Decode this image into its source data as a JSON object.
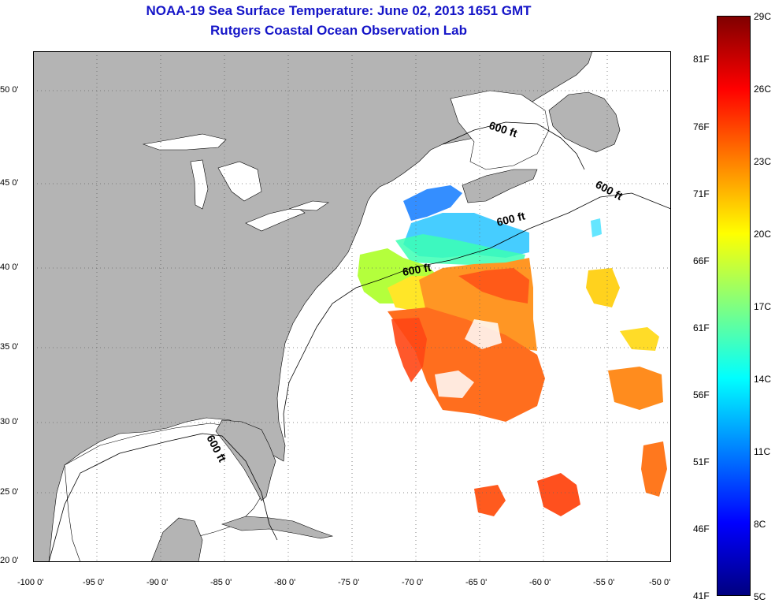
{
  "title_line1": "NOAA-19 Sea Surface Temperature:  June 02, 2013 1651 GMT",
  "title_line2": "Rutgers Coastal Ocean Observation Lab",
  "map": {
    "lon_range": [
      -100,
      -50
    ],
    "lat_range": [
      20,
      52.5
    ],
    "grid": "dotted",
    "land_color": "#b4b4b4",
    "lat_ticks": [
      {
        "value": 50,
        "label": "50 0'"
      },
      {
        "value": 45,
        "label": "45 0'"
      },
      {
        "value": 40,
        "label": "40 0'"
      },
      {
        "value": 35,
        "label": "35 0'"
      },
      {
        "value": 30,
        "label": "30 0'"
      },
      {
        "value": 25,
        "label": "25 0'"
      },
      {
        "value": 20,
        "label": "20 0'"
      }
    ],
    "lon_ticks": [
      {
        "value": -100,
        "label": "-100 0'"
      },
      {
        "value": -95,
        "label": "-95 0'"
      },
      {
        "value": -90,
        "label": "-90 0'"
      },
      {
        "value": -85,
        "label": "-85 0'"
      },
      {
        "value": -80,
        "label": "-80 0'"
      },
      {
        "value": -75,
        "label": "-75 0'"
      },
      {
        "value": -70,
        "label": "-70 0'"
      },
      {
        "value": -65,
        "label": "-65 0'"
      },
      {
        "value": -60,
        "label": "-60 0'"
      },
      {
        "value": -55,
        "label": "-55 0'"
      },
      {
        "value": -50,
        "label": "-50 0'"
      }
    ],
    "contour_labels": [
      "600 ft",
      "600 ft",
      "600 ft",
      "600 ft",
      "600 ft"
    ]
  },
  "colorbar": {
    "celsius": [
      "29C",
      "26C",
      "23C",
      "20C",
      "17C",
      "14C",
      "11C",
      "8C",
      "5C"
    ],
    "fahrenheit": [
      "81F",
      "76F",
      "71F",
      "66F",
      "61F",
      "56F",
      "51F",
      "46F",
      "41F"
    ],
    "colors": [
      "#800000",
      "#ff0000",
      "#ff8000",
      "#ffff00",
      "#80ff80",
      "#00ffff",
      "#0080ff",
      "#0000ff",
      "#000080"
    ]
  }
}
